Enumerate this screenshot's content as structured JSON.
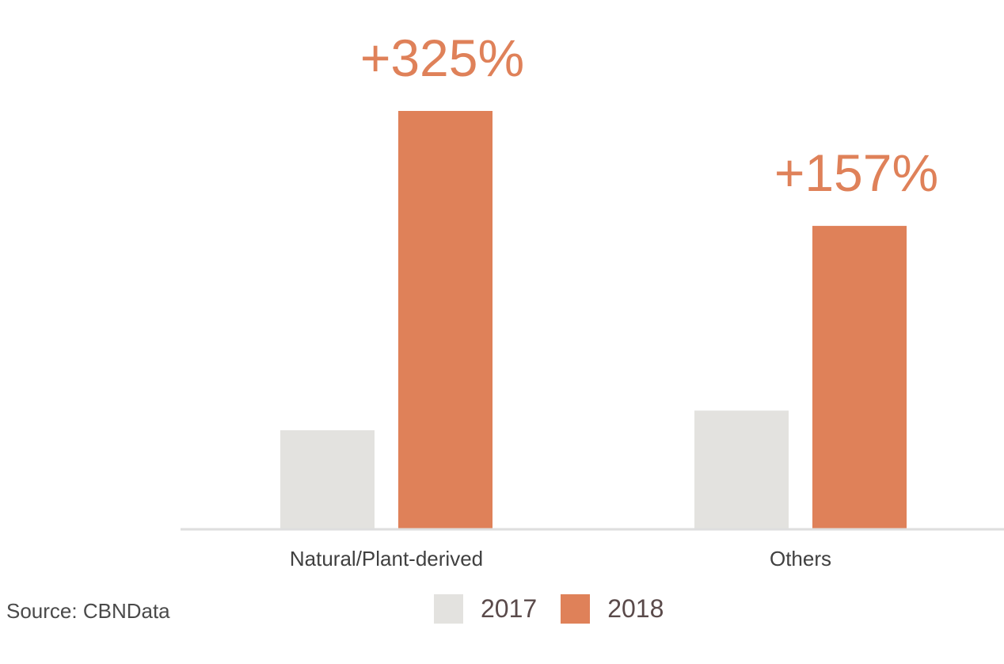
{
  "source": "Source: CBNData",
  "colors": {
    "2017": "#e3e2df",
    "2018": "#df8159",
    "axis": "#dedede",
    "category_text": "#404040",
    "annotation_text": "#df8159"
  },
  "chart_data": {
    "type": "bar",
    "title": "",
    "xlabel": "",
    "ylabel": "",
    "categories": [
      "Natural/Plant-derived",
      "Others"
    ],
    "series": [
      {
        "name": "2017",
        "values": [
          1.0,
          1.2
        ]
      },
      {
        "name": "2018",
        "values": [
          4.25,
          3.08
        ]
      }
    ],
    "annotations": [
      "+325%",
      "+157%"
    ],
    "ylim": [
      0,
      4.5
    ],
    "grid": false,
    "legend": "bottom-center",
    "y_axis_visible": false
  }
}
